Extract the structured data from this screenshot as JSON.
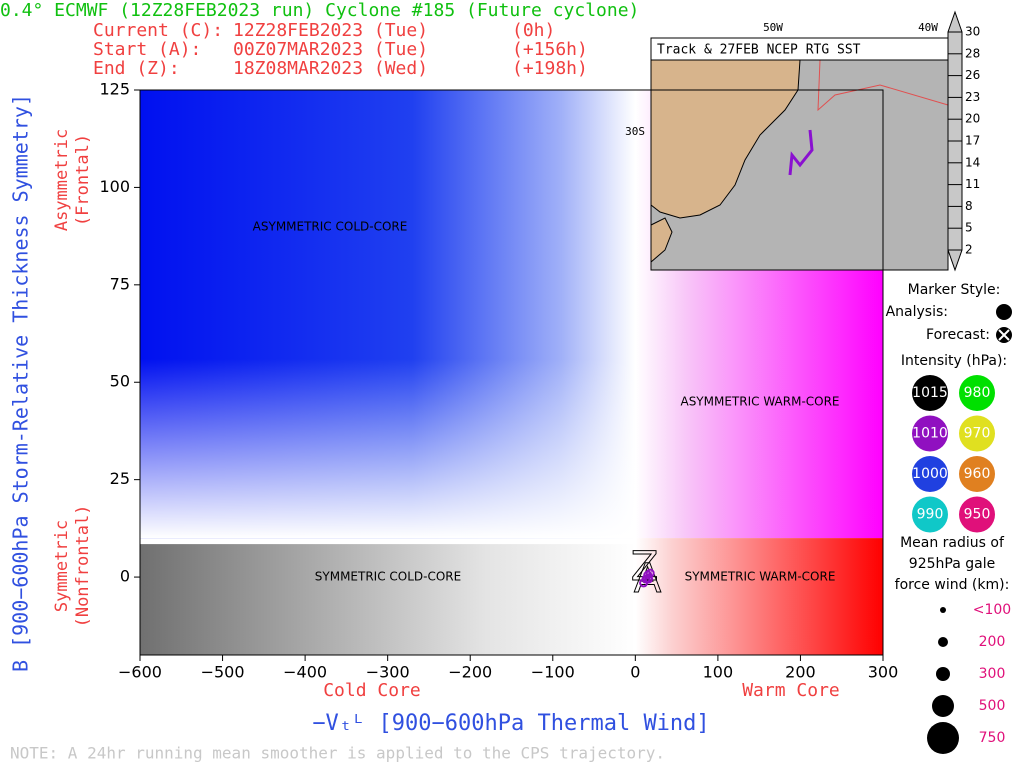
{
  "chart_data": {
    "type": "line",
    "title": "0.4° ECMWF (12Z28FEB2023 run) Cyclone #185 (Future cyclone)",
    "info": [
      [
        "Current (C):",
        "12Z28FEB2023 (Tue)",
        "(0h)"
      ],
      [
        "Start (A):",
        "00Z07MAR2023 (Tue)",
        "(+156h)"
      ],
      [
        "End (Z):",
        "18Z08MAR2023 (Wed)",
        "(+198h)"
      ]
    ],
    "x_label": "−Vₜᴸ [900−600hPa Thermal Wind]",
    "y_label": "B [900−600hPa Storm-Relative Thickness Symmetry]",
    "x_annotations": [
      "Cold Core",
      "Warm Core"
    ],
    "y_annotations": [
      [
        "Symmetric",
        "(Nonfrontal)"
      ],
      [
        "Asymmetric",
        "(Frontal)"
      ]
    ],
    "quadrants": [
      "ASYMMETRIC COLD-CORE",
      "ASYMMETRIC WARM-CORE",
      "SYMMETRIC COLD-CORE",
      "SYMMETRIC WARM-CORE"
    ],
    "xlim": [
      -600,
      300
    ],
    "ylim": [
      -20,
      125
    ],
    "xticks": [
      {
        "value": -600,
        "label": "−600"
      },
      {
        "value": -500,
        "label": "−500"
      },
      {
        "value": -400,
        "label": "−400"
      },
      {
        "value": -300,
        "label": "−300"
      },
      {
        "value": -200,
        "label": "−200"
      },
      {
        "value": -100,
        "label": "−100"
      },
      0,
      100,
      200,
      300
    ],
    "yticks": [
      0,
      25,
      50,
      75,
      100,
      125
    ],
    "series": [
      {
        "color": "#9010c0",
        "x": [
          10,
          13,
          15,
          18,
          16
        ],
        "y": [
          -1.5,
          -0.5,
          0.5,
          1,
          -0.5
        ]
      }
    ],
    "start_marker": "A",
    "end_marker": "Z",
    "note": "NOTE:  A 24hr running mean smoother is applied to the CPS trajectory."
  },
  "legend": {
    "marker_title": "Marker Style:",
    "analysis": "Analysis:",
    "forecast": "Forecast:",
    "intensity_title": "Intensity (hPa):",
    "intensity": [
      {
        "label": "1015",
        "color": "#000000"
      },
      {
        "label": "980",
        "color": "#00e000"
      },
      {
        "label": "1010",
        "color": "#9010c0"
      },
      {
        "label": "970",
        "color": "#e0e020"
      },
      {
        "label": "1000",
        "color": "#2040e0"
      },
      {
        "label": "960",
        "color": "#e08020"
      },
      {
        "label": "990",
        "color": "#10c8c8"
      },
      {
        "label": "950",
        "color": "#e0107a"
      }
    ],
    "radius_title": [
      "Mean radius of",
      "925hPa gale",
      "force wind (km):"
    ],
    "radius": [
      "<100",
      "200",
      "300",
      "500",
      "750"
    ]
  },
  "inset": {
    "title": "Track & 27FEB NCEP RTG SST",
    "lon_labels": [
      "50W",
      "40W"
    ],
    "lat_label": "30S",
    "colorbar_ticks": [
      2,
      5,
      8,
      11,
      14,
      17,
      20,
      23,
      26,
      28,
      30
    ]
  }
}
